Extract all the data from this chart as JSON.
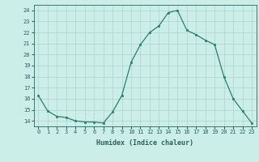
{
  "x": [
    0,
    1,
    2,
    3,
    4,
    5,
    6,
    7,
    8,
    9,
    10,
    11,
    12,
    13,
    14,
    15,
    16,
    17,
    18,
    19,
    20,
    21,
    22,
    23
  ],
  "y": [
    16.3,
    14.9,
    14.4,
    14.3,
    14.0,
    13.9,
    13.9,
    13.8,
    14.8,
    16.3,
    19.3,
    20.9,
    22.0,
    22.6,
    23.8,
    24.0,
    22.2,
    21.8,
    21.3,
    20.9,
    18.0,
    16.0,
    14.9,
    13.8
  ],
  "xlabel": "Humidex (Indice chaleur)",
  "ylim": [
    13.5,
    24.5
  ],
  "xlim": [
    -0.5,
    23.5
  ],
  "line_color": "#2e7d6e",
  "marker_color": "#2e7d6e",
  "bg_color": "#cceee8",
  "grid_color": "#aad4cc",
  "tick_color": "#2e6060",
  "label_color": "#2e6060",
  "yticks": [
    14,
    15,
    16,
    17,
    18,
    19,
    20,
    21,
    22,
    23,
    24
  ],
  "xtick_labels": [
    "0",
    "1",
    "2",
    "3",
    "4",
    "5",
    "6",
    "7",
    "8",
    "9",
    "10",
    "11",
    "12",
    "13",
    "14",
    "15",
    "16",
    "17",
    "18",
    "19",
    "20",
    "21",
    "22",
    "23"
  ]
}
